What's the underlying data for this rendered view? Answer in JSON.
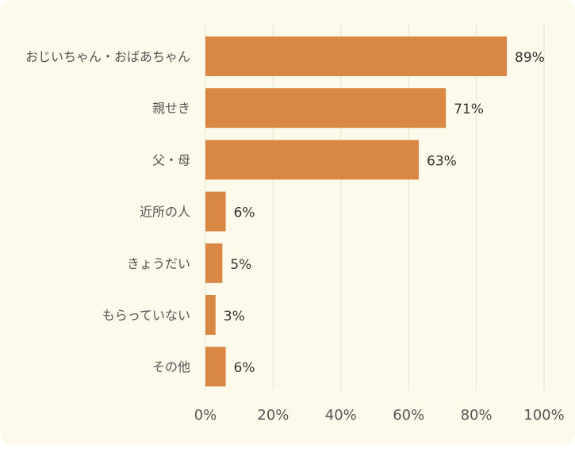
{
  "chart_data": {
    "type": "bar",
    "orientation": "horizontal",
    "title": "",
    "xlabel": "",
    "ylabel": "",
    "categories": [
      "おじいちゃん・おばあちゃん",
      "親せき",
      "父・母",
      "近所の人",
      "きょうだい",
      "もらっていない",
      "その他"
    ],
    "values": [
      89,
      71,
      63,
      6,
      5,
      3,
      6
    ],
    "value_labels": [
      "89%",
      "71%",
      "63%",
      "6%",
      "5%",
      "3%",
      "6%"
    ],
    "xlim": [
      0,
      100
    ],
    "xticks": [
      0,
      20,
      40,
      60,
      80,
      100
    ],
    "xtick_labels": [
      "0%",
      "20%",
      "40%",
      "60%",
      "80%",
      "100%"
    ],
    "grid": "vertical",
    "legend": "none",
    "colors": {
      "bar": "#d98844",
      "background": "#fdfaeb",
      "grid": "#e4e1cf",
      "text": "#555555"
    }
  }
}
